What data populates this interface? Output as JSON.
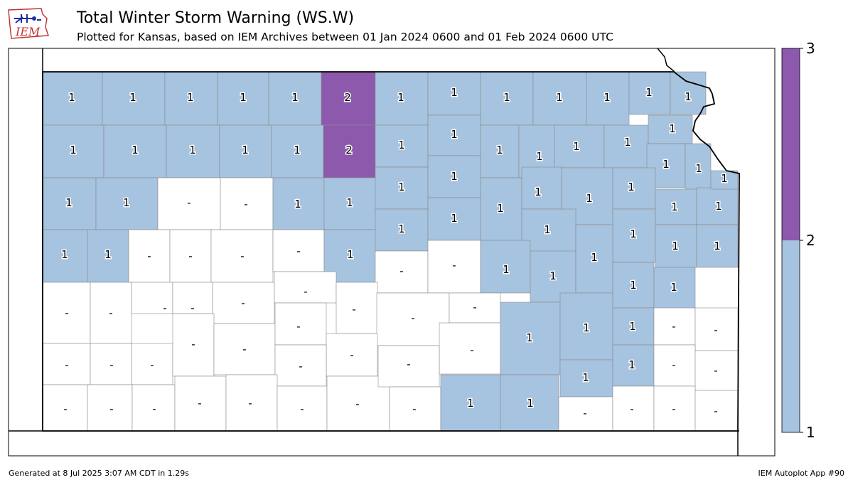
{
  "header": {
    "title": "Total Winter Storm Warning (WS.W)",
    "subtitle": "Plotted for Kansas, based on IEM Archives  between 01 Jan 2024 0600 and 01 Feb 2024 0600 UTC",
    "logo_text": "IEM"
  },
  "colorbar": {
    "ticks": [
      "1",
      "2",
      "3"
    ],
    "colors": {
      "low": "#a6c3df",
      "high": "#8c59ac",
      "none": "#ffffff"
    }
  },
  "footer": {
    "generated": "Generated at 8 Jul 2025 3:07 AM CDT in 1.29s",
    "app": "IEM Autoplot App #90"
  },
  "county_labels": [
    "1",
    "1",
    "1",
    "1",
    "1",
    "2",
    "1",
    "1",
    "1",
    "1",
    "1",
    "1",
    "1",
    "1",
    "1",
    "1",
    "1",
    "1",
    "2",
    "1",
    "1",
    "1",
    "1",
    "1",
    "1",
    "1",
    "1",
    "1",
    "1",
    "1",
    "-",
    "-",
    "1",
    "1",
    "1",
    "1",
    "1",
    "1",
    "1",
    "1",
    "1",
    "1",
    "1",
    "1",
    "1",
    "-",
    "-",
    "-",
    "-",
    "1",
    "1",
    "1",
    "1",
    "1",
    "1",
    "1",
    "-",
    "-",
    "1",
    "1",
    "1",
    "1",
    "1",
    "-",
    "-",
    "-",
    "-",
    "-",
    "-",
    "-",
    "-",
    "-",
    "1",
    "1",
    "1",
    "-",
    "-",
    "-",
    "-",
    "-",
    "-",
    "-",
    "-",
    "-",
    "-",
    "-",
    "1",
    "1",
    "-",
    "-",
    "-",
    "-",
    "-",
    "-",
    "-",
    "-",
    "-",
    "-",
    "-",
    "1",
    "1",
    "-",
    "-",
    "-",
    "-",
    "-",
    "-",
    "-",
    "-",
    "-",
    "-",
    "-",
    "-",
    "-",
    "-",
    "-",
    "-",
    "-",
    "-",
    "-",
    "-",
    "-"
  ]
}
